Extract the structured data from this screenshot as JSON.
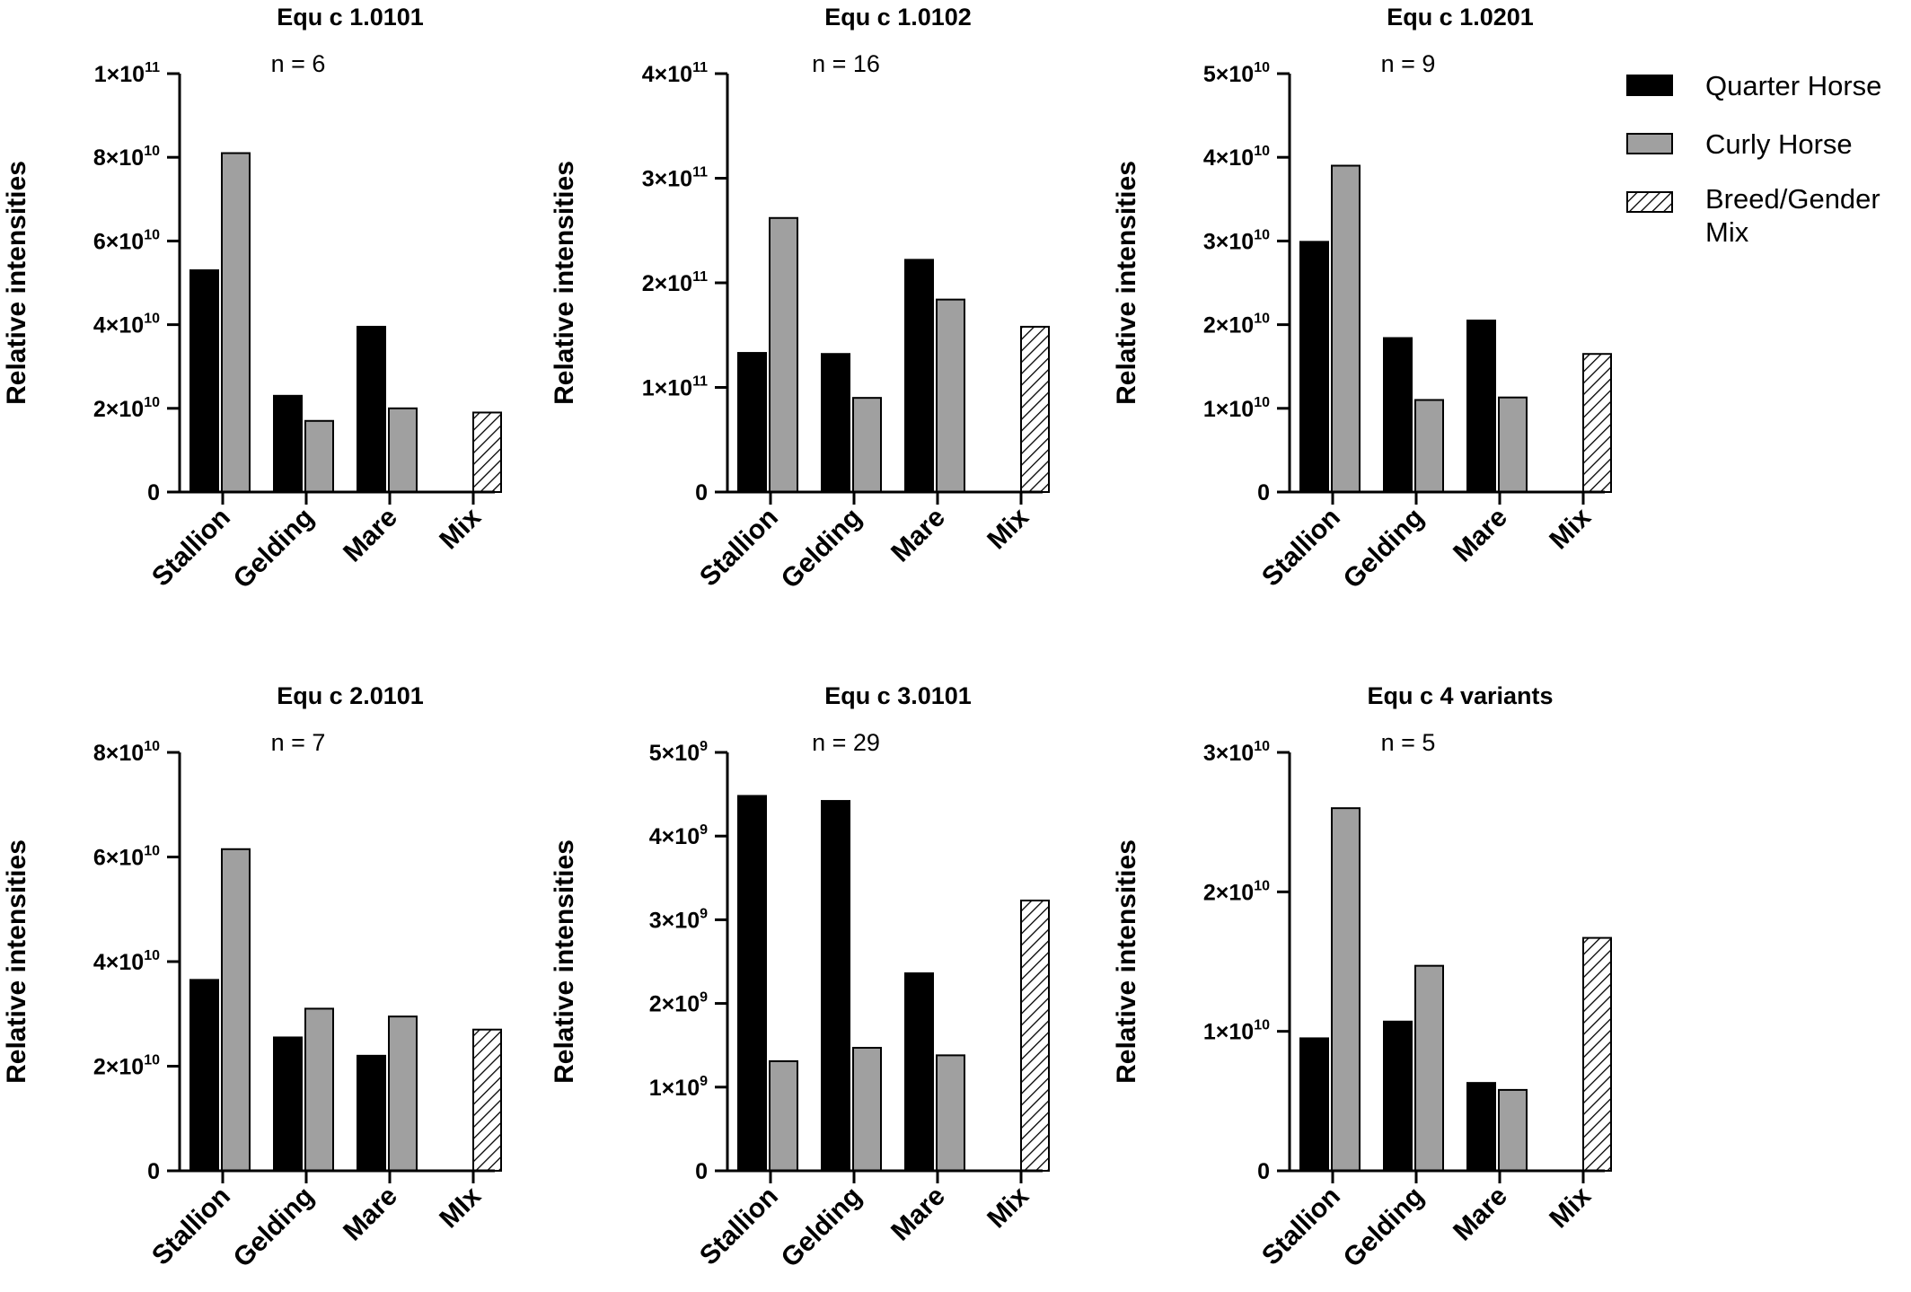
{
  "legend": {
    "items": [
      {
        "label_lines": [
          "Quarter Horse"
        ],
        "fill": "#000000",
        "pattern": "solid"
      },
      {
        "label_lines": [
          "Curly Horse"
        ],
        "fill": "#a0a0a0",
        "pattern": "solid"
      },
      {
        "label_lines": [
          "Breed/Gender",
          "Mix"
        ],
        "fill": "#ffffff",
        "pattern": "hatch"
      }
    ]
  },
  "colors": {
    "quarter_horse": "#000000",
    "curly_horse": "#a0a0a0",
    "mix": "#ffffff",
    "axis": "#000000"
  },
  "chart_data": [
    {
      "type": "bar",
      "title": "Equ c 1.0101",
      "n_label": "n = 6",
      "ylabel": "Relative intensities",
      "categories": [
        "Stallion",
        "Gelding",
        "Mare",
        "Mix"
      ],
      "ylim": [
        0,
        100000000000
      ],
      "yticks": [
        {
          "value": 0,
          "mantissa": "0",
          "exp": ""
        },
        {
          "value": 20000000000,
          "mantissa": "2×10",
          "exp": "10"
        },
        {
          "value": 40000000000,
          "mantissa": "4×10",
          "exp": "10"
        },
        {
          "value": 60000000000,
          "mantissa": "6×10",
          "exp": "10"
        },
        {
          "value": 80000000000,
          "mantissa": "8×10",
          "exp": "10"
        },
        {
          "value": 100000000000,
          "mantissa": "1×10",
          "exp": "11"
        }
      ],
      "series": [
        {
          "name": "Quarter Horse",
          "values": [
            53000000000,
            23000000000,
            39500000000,
            null
          ]
        },
        {
          "name": "Curly Horse",
          "values": [
            81000000000,
            17000000000,
            20000000000,
            null
          ]
        },
        {
          "name": "Breed/Gender Mix",
          "values": [
            null,
            null,
            null,
            19000000000
          ]
        }
      ]
    },
    {
      "type": "bar",
      "title": "Equ c 1.0102",
      "n_label": "n = 16",
      "ylabel": "Relative intensities",
      "categories": [
        "Stallion",
        "Gelding",
        "Mare",
        "Mix"
      ],
      "ylim": [
        0,
        400000000000
      ],
      "yticks": [
        {
          "value": 0,
          "mantissa": "0",
          "exp": ""
        },
        {
          "value": 100000000000,
          "mantissa": "1×10",
          "exp": "11"
        },
        {
          "value": 200000000000,
          "mantissa": "2×10",
          "exp": "11"
        },
        {
          "value": 300000000000,
          "mantissa": "3×10",
          "exp": "11"
        },
        {
          "value": 400000000000,
          "mantissa": "4×10",
          "exp": "11"
        }
      ],
      "series": [
        {
          "name": "Quarter Horse",
          "values": [
            133000000000,
            132000000000,
            222000000000,
            null
          ]
        },
        {
          "name": "Curly Horse",
          "values": [
            262000000000,
            90000000000,
            184000000000,
            null
          ]
        },
        {
          "name": "Breed/Gender Mix",
          "values": [
            null,
            null,
            null,
            158000000000
          ]
        }
      ]
    },
    {
      "type": "bar",
      "title": "Equ c 1.0201",
      "n_label": "n = 9",
      "ylabel": "Relative intensities",
      "categories": [
        "Stallion",
        "Gelding",
        "Mare",
        "Mix"
      ],
      "ylim": [
        0,
        50000000000
      ],
      "yticks": [
        {
          "value": 0,
          "mantissa": "0",
          "exp": ""
        },
        {
          "value": 10000000000,
          "mantissa": "1×10",
          "exp": "10"
        },
        {
          "value": 20000000000,
          "mantissa": "2×10",
          "exp": "10"
        },
        {
          "value": 30000000000,
          "mantissa": "3×10",
          "exp": "10"
        },
        {
          "value": 40000000000,
          "mantissa": "4×10",
          "exp": "10"
        },
        {
          "value": 50000000000,
          "mantissa": "5×10",
          "exp": "10"
        }
      ],
      "series": [
        {
          "name": "Quarter Horse",
          "values": [
            29900000000,
            18400000000,
            20500000000,
            null
          ]
        },
        {
          "name": "Curly Horse",
          "values": [
            39000000000,
            11000000000,
            11300000000,
            null
          ]
        },
        {
          "name": "Breed/Gender Mix",
          "values": [
            null,
            null,
            null,
            16500000000
          ]
        }
      ]
    },
    {
      "type": "bar",
      "title": "Equ c 2.0101",
      "n_label": "n = 7",
      "ylabel": "Relative intensities",
      "categories": [
        "Stallion",
        "Gelding",
        "Mare",
        "MIx"
      ],
      "ylim": [
        0,
        80000000000
      ],
      "yticks": [
        {
          "value": 0,
          "mantissa": "0",
          "exp": ""
        },
        {
          "value": 20000000000,
          "mantissa": "2×10",
          "exp": "10"
        },
        {
          "value": 40000000000,
          "mantissa": "4×10",
          "exp": "10"
        },
        {
          "value": 60000000000,
          "mantissa": "6×10",
          "exp": "10"
        },
        {
          "value": 80000000000,
          "mantissa": "8×10",
          "exp": "10"
        }
      ],
      "series": [
        {
          "name": "Quarter Horse",
          "values": [
            36500000000,
            25500000000,
            22000000000,
            null
          ]
        },
        {
          "name": "Curly Horse",
          "values": [
            61500000000,
            31000000000,
            29500000000,
            null
          ]
        },
        {
          "name": "Breed/Gender Mix",
          "values": [
            null,
            null,
            null,
            27000000000
          ]
        }
      ]
    },
    {
      "type": "bar",
      "title": "Equ c 3.0101",
      "n_label": "n = 29",
      "ylabel": "Relative intensities",
      "categories": [
        "Stallion",
        "Gelding",
        "Mare",
        "Mix"
      ],
      "ylim": [
        0,
        5000000000
      ],
      "yticks": [
        {
          "value": 0,
          "mantissa": "0",
          "exp": ""
        },
        {
          "value": 1000000000,
          "mantissa": "1×10",
          "exp": "9"
        },
        {
          "value": 2000000000,
          "mantissa": "2×10",
          "exp": "9"
        },
        {
          "value": 3000000000,
          "mantissa": "3×10",
          "exp": "9"
        },
        {
          "value": 4000000000,
          "mantissa": "4×10",
          "exp": "9"
        },
        {
          "value": 5000000000,
          "mantissa": "5×10",
          "exp": "9"
        }
      ],
      "series": [
        {
          "name": "Quarter Horse",
          "values": [
            4480000000,
            4420000000,
            2360000000,
            null
          ]
        },
        {
          "name": "Curly Horse",
          "values": [
            1310000000,
            1470000000,
            1380000000,
            null
          ]
        },
        {
          "name": "Breed/Gender Mix",
          "values": [
            null,
            null,
            null,
            3230000000
          ]
        }
      ]
    },
    {
      "type": "bar",
      "title": "Equ c 4 variants",
      "n_label": "n = 5",
      "ylabel": "Relative intensities",
      "categories": [
        "Stallion",
        "Gelding",
        "Mare",
        "Mix"
      ],
      "ylim": [
        0,
        30000000000
      ],
      "yticks": [
        {
          "value": 0,
          "mantissa": "0",
          "exp": ""
        },
        {
          "value": 10000000000,
          "mantissa": "1×10",
          "exp": "10"
        },
        {
          "value": 20000000000,
          "mantissa": "2×10",
          "exp": "10"
        },
        {
          "value": 30000000000,
          "mantissa": "3×10",
          "exp": "10"
        }
      ],
      "series": [
        {
          "name": "Quarter Horse",
          "values": [
            9500000000,
            10700000000,
            6300000000,
            null
          ]
        },
        {
          "name": "Curly Horse",
          "values": [
            26000000000,
            14700000000,
            5800000000,
            null
          ]
        },
        {
          "name": "Breed/Gender Mix",
          "values": [
            null,
            null,
            null,
            16700000000
          ]
        }
      ]
    }
  ]
}
